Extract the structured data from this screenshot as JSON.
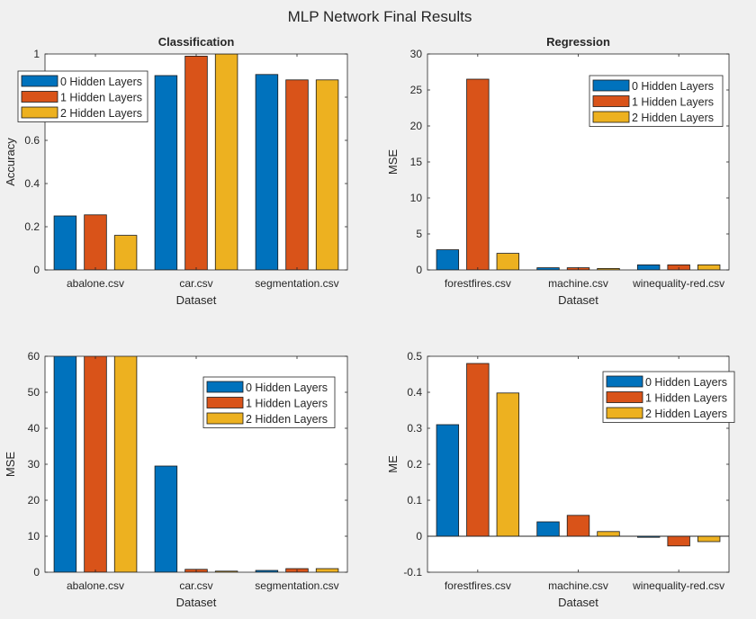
{
  "figure_title": "MLP Network Final Results",
  "colors": {
    "series": [
      "#0072BD",
      "#D95319",
      "#EDB120"
    ],
    "axes_bg": "#ffffff",
    "figure_bg": "#f0f0f0"
  },
  "chart_data": [
    {
      "type": "bar",
      "title": "Classification",
      "xlabel": "Dataset",
      "ylabel": "Accuracy",
      "categories": [
        "abalone.csv",
        "car.csv",
        "segmentation.csv"
      ],
      "series": [
        {
          "name": "0 Hidden Layers",
          "values": [
            0.25,
            0.9,
            0.905
          ]
        },
        {
          "name": "1 Hidden Layers",
          "values": [
            0.255,
            0.99,
            0.88
          ]
        },
        {
          "name": "2 Hidden Layers",
          "values": [
            0.16,
            1.0,
            0.88
          ]
        }
      ],
      "ylim": [
        0,
        1
      ],
      "yticks": [
        0,
        0.2,
        0.4,
        0.6,
        0.8,
        1
      ],
      "ytick_labels": [
        "0",
        "0.2",
        "0.4",
        "0.6",
        "0.8",
        "1"
      ],
      "legend": "top-left",
      "grid": false
    },
    {
      "type": "bar",
      "title": "Regression",
      "xlabel": "Dataset",
      "ylabel": "MSE",
      "categories": [
        "forestfires.csv",
        "machine.csv",
        "winequality-red.csv"
      ],
      "series": [
        {
          "name": "0 Hidden Layers",
          "values": [
            2.8,
            0.3,
            0.7
          ]
        },
        {
          "name": "1 Hidden Layers",
          "values": [
            26.5,
            0.3,
            0.7
          ]
        },
        {
          "name": "2 Hidden Layers",
          "values": [
            2.3,
            0.2,
            0.7
          ]
        }
      ],
      "ylim": [
        0,
        30
      ],
      "yticks": [
        0,
        5,
        10,
        15,
        20,
        25,
        30
      ],
      "ytick_labels": [
        "0",
        "5",
        "10",
        "15",
        "20",
        "25",
        "30"
      ],
      "legend": "top-right",
      "grid": false
    },
    {
      "type": "bar",
      "title": "",
      "xlabel": "Dataset",
      "ylabel": "MSE",
      "categories": [
        "abalone.csv",
        "car.csv",
        "segmentation.csv"
      ],
      "series": [
        {
          "name": "0 Hidden Layers",
          "values": [
            65,
            29.5,
            0.5
          ]
        },
        {
          "name": "1 Hidden Layers",
          "values": [
            65,
            0.8,
            1.0
          ]
        },
        {
          "name": "2 Hidden Layers",
          "values": [
            65,
            0.3,
            1.0
          ]
        }
      ],
      "ylim": [
        0,
        60
      ],
      "yticks": [
        0,
        10,
        20,
        30,
        40,
        50,
        60
      ],
      "ytick_labels": [
        "0",
        "10",
        "20",
        "30",
        "40",
        "50",
        "60"
      ],
      "legend": "top-right",
      "grid": false
    },
    {
      "type": "bar",
      "title": "",
      "xlabel": "Dataset",
      "ylabel": "ME",
      "categories": [
        "forestfires.csv",
        "machine.csv",
        "winequality-red.csv"
      ],
      "series": [
        {
          "name": "0 Hidden Layers",
          "values": [
            0.31,
            0.04,
            -0.003
          ]
        },
        {
          "name": "1 Hidden Layers",
          "values": [
            0.48,
            0.058,
            -0.027
          ]
        },
        {
          "name": "2 Hidden Layers",
          "values": [
            0.398,
            0.013,
            -0.015
          ]
        }
      ],
      "ylim": [
        -0.1,
        0.5
      ],
      "yticks": [
        -0.1,
        0,
        0.1,
        0.2,
        0.3,
        0.4,
        0.5
      ],
      "ytick_labels": [
        "-0.1",
        "0",
        "0.1",
        "0.2",
        "0.3",
        "0.4",
        "0.5"
      ],
      "legend": "top-right",
      "grid": false,
      "baseline": 0
    }
  ]
}
